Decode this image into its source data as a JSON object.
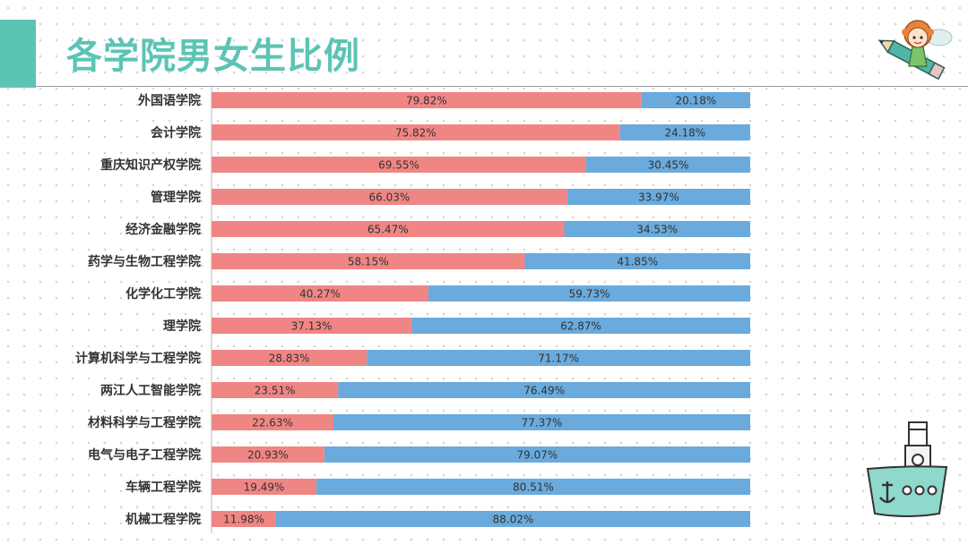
{
  "title": "各学院男女生比例",
  "colors": {
    "accent": "#5cc4b4",
    "female": "#f08684",
    "male": "#6aaadc",
    "label_text": "#333333"
  },
  "chart_data": {
    "type": "bar",
    "orientation": "horizontal",
    "stacked": "percent",
    "categories": [
      "外国语学院",
      "会计学院",
      "重庆知识产权学院",
      "管理学院",
      "经济金融学院",
      "药学与生物工程学院",
      "化学化工学院",
      "理学院",
      "计算机科学与工程学院",
      "两江人工智能学院",
      "材料科学与工程学院",
      "电气与电子工程学院",
      "车辆工程学院",
      "机械工程学院"
    ],
    "series": [
      {
        "values": [
          79.82,
          75.82,
          69.55,
          66.03,
          65.47,
          58.15,
          40.27,
          37.13,
          28.83,
          23.51,
          22.63,
          20.93,
          19.49,
          11.98
        ],
        "labels": [
          "79.82%",
          "75.82%",
          "69.55%",
          "66.03%",
          "65.47%",
          "58.15%",
          "40.27%",
          "37.13%",
          "28.83%",
          "23.51%",
          "22.63%",
          "20.93%",
          "19.49%",
          "11.98%"
        ]
      },
      {
        "values": [
          20.18,
          24.18,
          30.45,
          33.97,
          34.53,
          41.85,
          59.73,
          62.87,
          71.17,
          76.49,
          77.37,
          79.07,
          80.51,
          88.02
        ],
        "labels": [
          "20.18%",
          "24.18%",
          "30.45%",
          "33.97%",
          "34.53%",
          "41.85%",
          "59.73%",
          "62.87%",
          "71.17%",
          "76.49%",
          "77.37%",
          "79.07%",
          "80.51%",
          "88.02%"
        ]
      }
    ],
    "xlim": [
      0,
      100
    ],
    "grid": false,
    "legend": false
  },
  "decorations": {
    "top_right": "girl-on-pencil-illustration",
    "bottom_right": "ship-anchor-illustration"
  }
}
